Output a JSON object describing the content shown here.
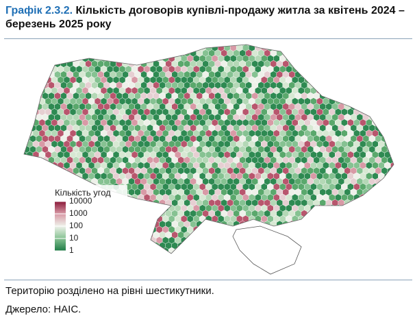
{
  "header": {
    "figure_number": "Графік 2.3.2.",
    "title": "Кількість договорів купівлі-продажу житла за квітень 2024 – березень 2025 року"
  },
  "map": {
    "legend": {
      "title": "Кількість угод",
      "log_scale": true,
      "ticks": [
        10000,
        1000,
        100,
        10,
        1
      ],
      "colors": [
        "#8b1a3a",
        "#d89aa6",
        "#eef1ea",
        "#86c292",
        "#1e7b45"
      ]
    }
  },
  "notes": [
    "Територію розділено на рівні шестикутники.",
    "Джерело: НАІС."
  ]
}
